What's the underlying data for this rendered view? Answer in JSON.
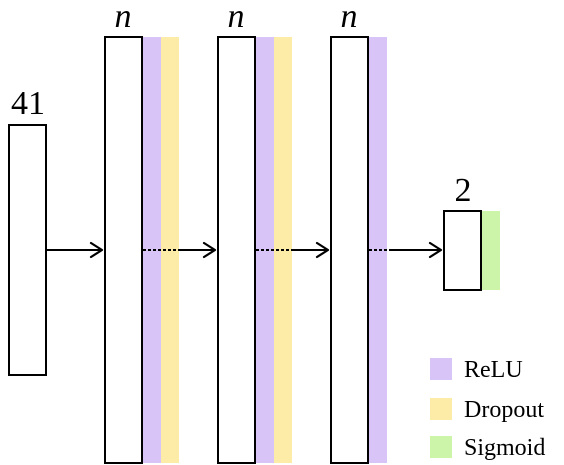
{
  "layers": {
    "input": {
      "size": "41"
    },
    "hidden_1": {
      "size": "n"
    },
    "hidden_2": {
      "size": "n"
    },
    "hidden_3": {
      "size": "n"
    },
    "output": {
      "size": "2"
    }
  },
  "legend": {
    "relu": {
      "label": "ReLU",
      "color": "#d9c4f7"
    },
    "dropout": {
      "label": "Dropout",
      "color": "#fdeba8"
    },
    "sigmoid": {
      "label": "Sigmoid",
      "color": "#cdf5a9"
    }
  }
}
